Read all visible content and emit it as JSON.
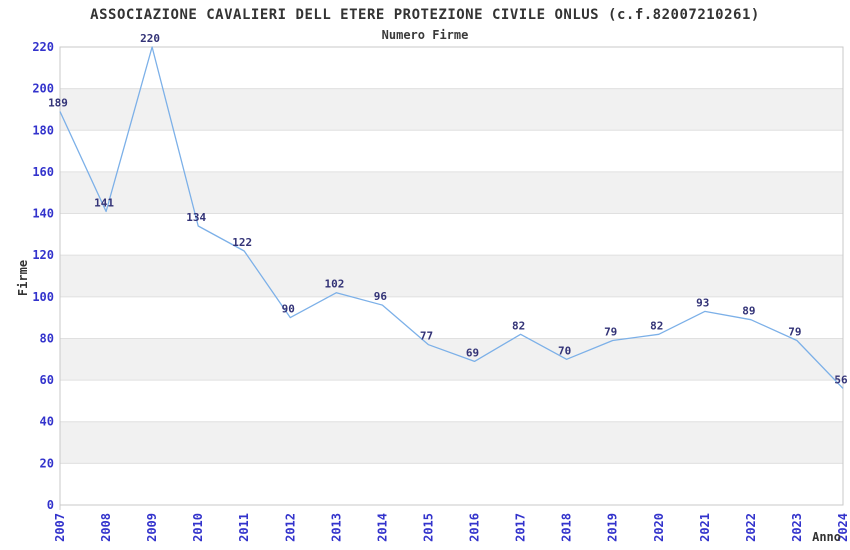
{
  "header": {
    "title": "ASSOCIAZIONE CAVALIERI DELL ETERE PROTEZIONE CIVILE ONLUS (c.f.82007210261)",
    "subtitle": "Numero Firme"
  },
  "chart_data": {
    "type": "line",
    "title": "ASSOCIAZIONE CAVALIERI DELL ETERE PROTEZIONE CIVILE ONLUS (c.f.82007210261)",
    "subtitle": "Numero Firme",
    "xlabel": "Anno",
    "ylabel": "Firme",
    "categories": [
      "2007",
      "2008",
      "2009",
      "2010",
      "2011",
      "2012",
      "2013",
      "2014",
      "2015",
      "2016",
      "2017",
      "2018",
      "2019",
      "2020",
      "2021",
      "2022",
      "2023",
      "2024"
    ],
    "values": [
      189,
      141,
      220,
      134,
      122,
      90,
      102,
      96,
      77,
      69,
      82,
      70,
      79,
      82,
      93,
      89,
      79,
      56
    ],
    "ylim": [
      0,
      220
    ],
    "ytick_step": 20,
    "ytick_labels": [
      "0",
      "20",
      "40",
      "60",
      "80",
      "100",
      "120",
      "140",
      "160",
      "180",
      "200",
      "220"
    ],
    "grid": true,
    "alternating_bands": true,
    "legend": "none",
    "data_labels_shown": true,
    "colors": {
      "line": "#7CB0E8",
      "tick_label": "#3333CC",
      "data_label": "#333377",
      "band": "#F1F1F1",
      "gridline": "#E0E0E0",
      "plot_border": "#C9C9C9",
      "text": "#333333",
      "background": "#FFFFFF"
    }
  }
}
